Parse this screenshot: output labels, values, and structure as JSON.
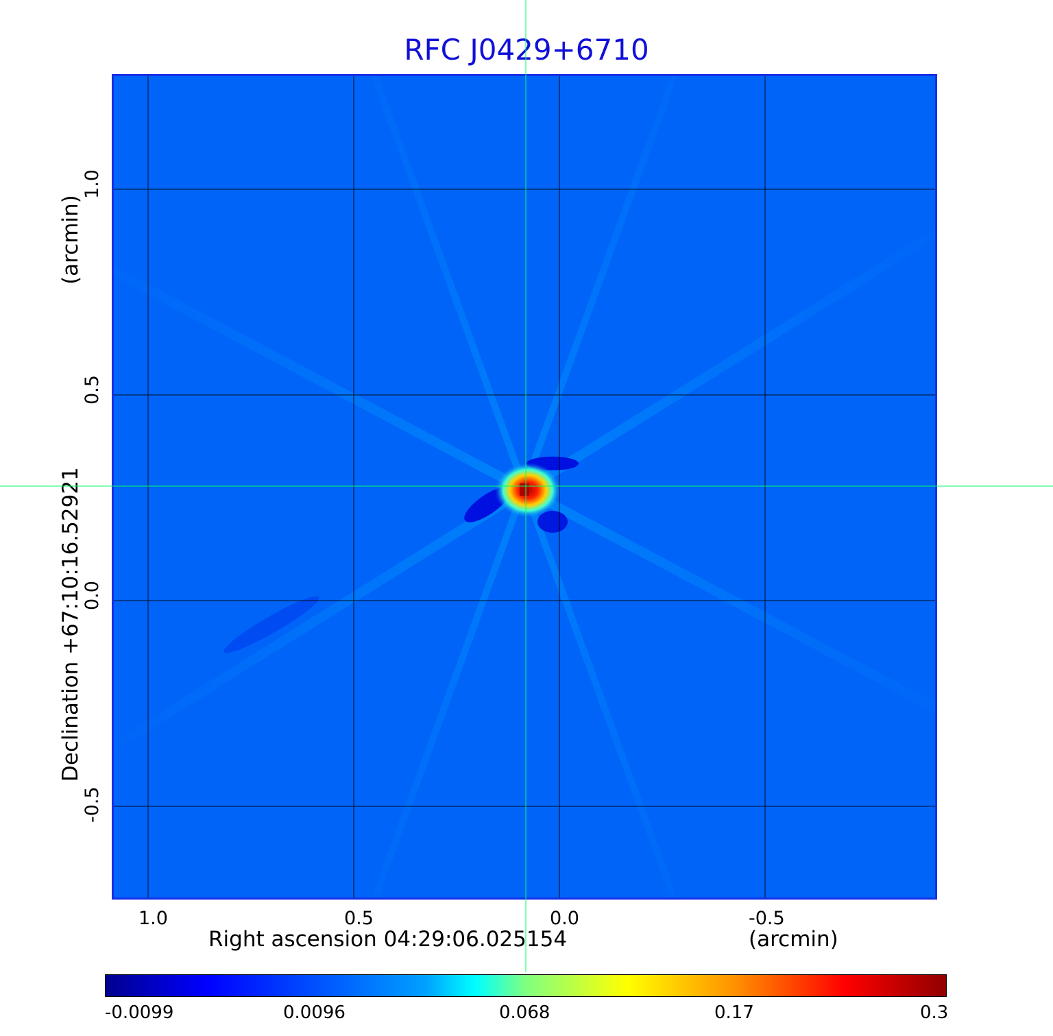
{
  "title": "RFC J0429+6710",
  "x_axis": {
    "title": "Right ascension  04:29:06.025154",
    "unit": "(arcmin)",
    "ticks": [
      "1.0",
      "0.5",
      "0.0",
      "-0.5"
    ]
  },
  "y_axis": {
    "title": "Declination  +67:10:16.52921",
    "unit": "(arcmin)",
    "ticks": [
      "1.0",
      "0.5",
      "0.0",
      "-0.5"
    ]
  },
  "colorbar": {
    "ticks": [
      "-0.0099",
      "0.0096",
      "0.068",
      "0.17",
      "0.3"
    ]
  },
  "colors": {
    "background": "#0066ff",
    "grid": "#000000",
    "crosshair": "#00ff66",
    "title": "#1010d8",
    "frame": "#1530e8"
  }
}
